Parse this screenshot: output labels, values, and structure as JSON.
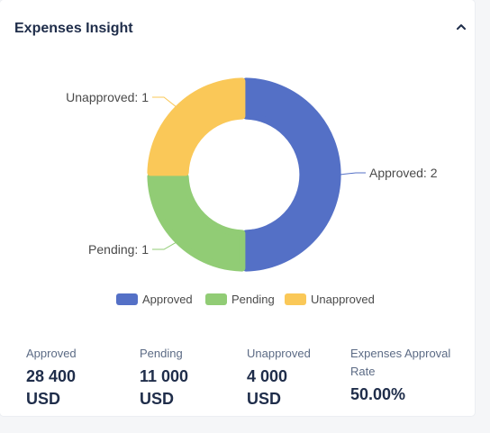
{
  "header": {
    "title": "Expenses Insight",
    "collapse_icon": "chevron-up-icon"
  },
  "chart_data": {
    "type": "pie",
    "donut": true,
    "categories": [
      "Approved",
      "Pending",
      "Unapproved"
    ],
    "values": [
      2,
      1,
      1
    ],
    "colors": [
      "#5470c6",
      "#91cc75",
      "#fac858"
    ],
    "labels": [
      "Approved: 2",
      "Pending: 1",
      "Unapproved: 1"
    ],
    "legend": {
      "position": "bottom",
      "entries": [
        "Approved",
        "Pending",
        "Unapproved"
      ]
    }
  },
  "stats": [
    {
      "label": "Approved",
      "value_line1": "28 400",
      "value_line2": "USD"
    },
    {
      "label": "Pending",
      "value_line1": "11 000",
      "value_line2": "USD"
    },
    {
      "label": "Unapproved",
      "value_line1": "4 000",
      "value_line2": "USD"
    },
    {
      "label_line1": "Expenses Approval",
      "label_line2": "Rate",
      "value": "50.00%"
    }
  ]
}
